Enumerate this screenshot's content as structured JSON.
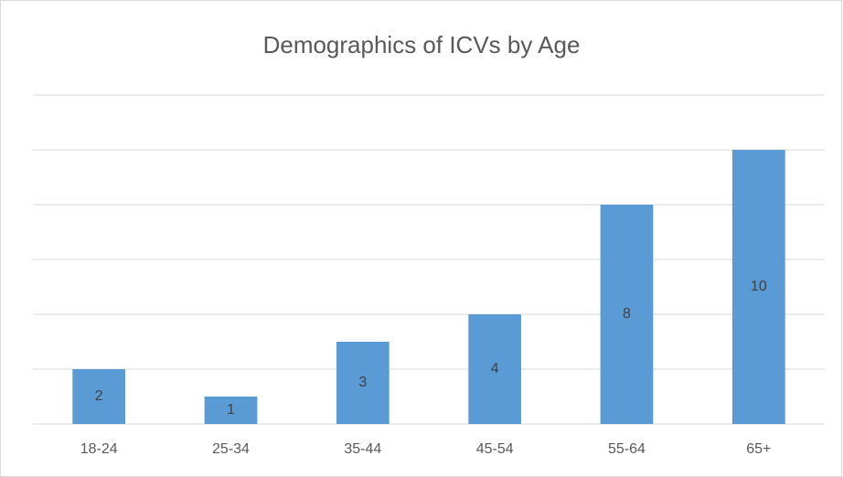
{
  "chart_data": {
    "type": "bar",
    "title": "Demographics of ICVs by Age",
    "categories": [
      "18-24",
      "25-34",
      "35-44",
      "45-54",
      "55-64",
      "65+"
    ],
    "values": [
      2,
      1,
      3,
      4,
      8,
      10
    ],
    "color": "#5b9bd5",
    "ylim": [
      0,
      12
    ],
    "yticks": [
      0,
      2,
      4,
      6,
      8,
      10,
      12
    ],
    "grid": true
  }
}
